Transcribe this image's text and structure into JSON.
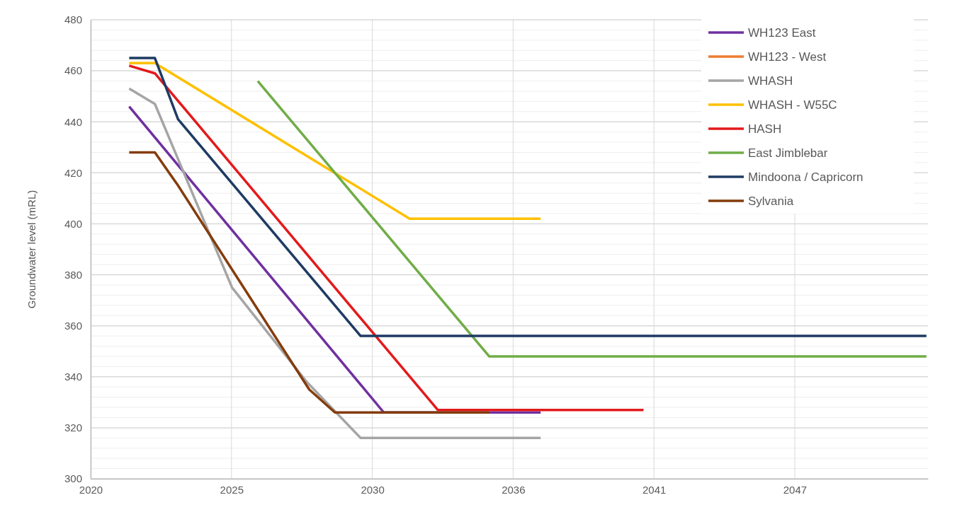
{
  "chart_data": {
    "type": "line",
    "ylabel": "Groundwater level (mRL)",
    "xlim": [
      "2020-01-01",
      "2052-07-23"
    ],
    "ylim": [
      300,
      480
    ],
    "xticks": [
      {
        "value": "2020-01-01",
        "label": "2020"
      },
      {
        "value": "2025-06-23",
        "label": "2025"
      },
      {
        "value": "2030-12-14",
        "label": "2030"
      },
      {
        "value": "2036-06-05",
        "label": "2036"
      },
      {
        "value": "2041-11-26",
        "label": "2041"
      },
      {
        "value": "2047-05-19",
        "label": "2047"
      }
    ],
    "yticks": [
      300,
      {
        "value": 304,
        "label": null
      },
      {
        "value": 308,
        "label": null
      },
      {
        "value": 312,
        "label": null
      },
      {
        "value": 316,
        "label": null
      },
      320,
      {
        "value": 324,
        "label": null
      },
      {
        "value": 328,
        "label": null
      },
      {
        "value": 332,
        "label": null
      },
      {
        "value": 336,
        "label": null
      },
      340,
      {
        "value": 344,
        "label": null
      },
      {
        "value": 348,
        "label": null
      },
      {
        "value": 352,
        "label": null
      },
      {
        "value": 356,
        "label": null
      },
      360,
      {
        "value": 364,
        "label": null
      },
      {
        "value": 368,
        "label": null
      },
      {
        "value": 372,
        "label": null
      },
      {
        "value": 376,
        "label": null
      },
      380,
      {
        "value": 384,
        "label": null
      },
      {
        "value": 388,
        "label": null
      },
      {
        "value": 392,
        "label": null
      },
      {
        "value": 396,
        "label": null
      },
      400,
      {
        "value": 404,
        "label": null
      },
      {
        "value": 408,
        "label": null
      },
      {
        "value": 412,
        "label": null
      },
      {
        "value": 416,
        "label": null
      },
      420,
      {
        "value": 424,
        "label": null
      },
      {
        "value": 428,
        "label": null
      },
      {
        "value": 432,
        "label": null
      },
      {
        "value": 436,
        "label": null
      },
      440,
      {
        "value": 444,
        "label": null
      },
      {
        "value": 448,
        "label": null
      },
      {
        "value": 452,
        "label": null
      },
      {
        "value": 456,
        "label": null
      },
      460,
      {
        "value": 464,
        "label": null
      },
      {
        "value": 468,
        "label": null
      },
      {
        "value": 472,
        "label": null
      },
      {
        "value": 476,
        "label": null
      },
      480
    ],
    "grid": true,
    "legend": "top right",
    "line_style": "solid",
    "marker": "none",
    "series": [
      {
        "name": "WH123 East",
        "color": "#7030a0",
        "x": [
          "2021-07-01",
          "2031-05-26",
          "2037-07-01"
        ],
        "values": [
          446,
          326,
          326
        ]
      },
      {
        "name": "WH123 - West",
        "color": "#ed7d31"
      },
      {
        "name": "WHASH",
        "color": "#a5a5a5",
        "x": [
          "2021-07-01",
          "2022-07-01",
          "2025-07-01",
          "2028-05-26",
          "2030-07-01",
          "2037-07-01"
        ],
        "values": [
          453,
          447,
          375,
          338,
          316,
          316
        ]
      },
      {
        "name": "WHASH - W55C",
        "color": "#ffc000",
        "x": [
          "2021-07-01",
          "2022-07-01",
          "2032-05-26",
          "2037-07-01"
        ],
        "values": [
          463,
          463,
          402,
          402
        ]
      },
      {
        "name": "HASH",
        "color": "#e31a1c",
        "x": [
          "2021-07-01",
          "2022-07-01",
          "2033-07-01",
          "2041-07-01"
        ],
        "values": [
          462,
          459,
          327,
          327
        ]
      },
      {
        "name": "East Jimblebar",
        "color": "#70ad47",
        "x": [
          "2026-07-01",
          "2035-07-01",
          "2052-07-01"
        ],
        "values": [
          456,
          348,
          348
        ]
      },
      {
        "name": "Mindoona / Capricorn",
        "color": "#1f3b63",
        "x": [
          "2021-07-01",
          "2022-07-01",
          "2023-05-26",
          "2030-07-01",
          "2052-07-01"
        ],
        "values": [
          465,
          465,
          441,
          356,
          356
        ]
      },
      {
        "name": "Sylvania",
        "color": "#843c0c",
        "x": [
          "2021-07-01",
          "2022-07-01",
          "2023-05-26",
          "2028-07-01",
          "2029-07-01",
          "2035-07-01"
        ],
        "values": [
          428,
          428,
          415,
          335,
          326,
          326
        ]
      }
    ]
  }
}
